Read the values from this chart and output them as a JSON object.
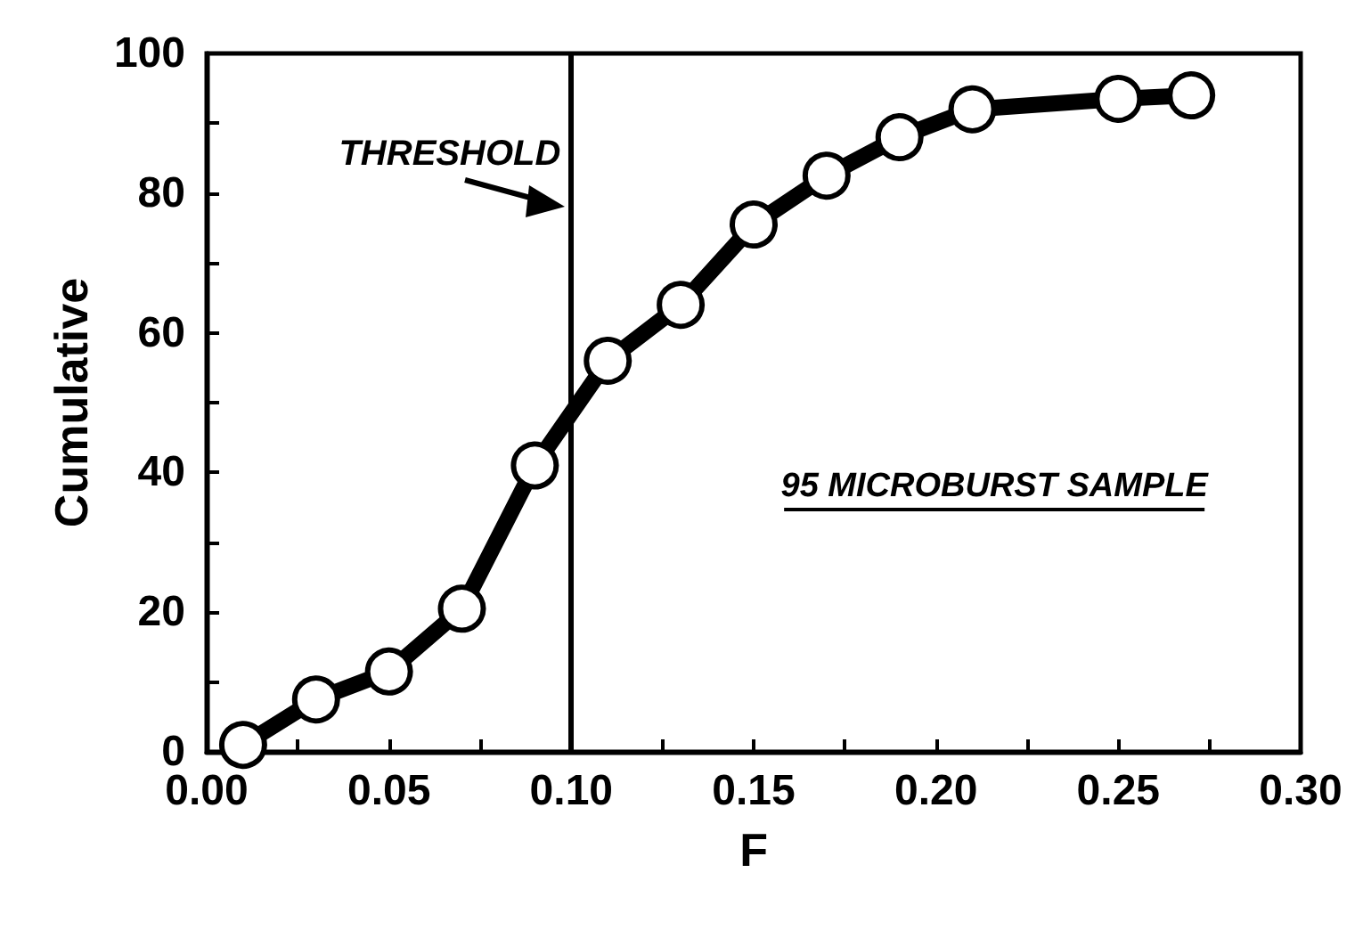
{
  "chart_data": {
    "type": "line",
    "xlabel": "F",
    "ylabel": "Cumulative",
    "x": [
      0.01,
      0.03,
      0.05,
      0.07,
      0.09,
      0.11,
      0.13,
      0.15,
      0.17,
      0.19,
      0.21,
      0.25,
      0.27
    ],
    "series": [
      {
        "color": "#000000",
        "values": [
          1,
          7.5,
          11.5,
          20.5,
          41,
          56,
          64,
          75.5,
          82.5,
          88,
          92,
          93.5,
          94
        ]
      }
    ],
    "xlim": [
      0,
      0.3
    ],
    "xticks": [
      {
        "value": 0,
        "label": "0.00"
      },
      {
        "value": 0.025,
        "label": null
      },
      {
        "value": 0.05,
        "label": "0.05"
      },
      {
        "value": 0.075,
        "label": null
      },
      {
        "value": 0.1,
        "label": "0.10"
      },
      {
        "value": 0.125,
        "label": null
      },
      {
        "value": 0.15,
        "label": "0.15"
      },
      {
        "value": 0.175,
        "label": null
      },
      {
        "value": 0.2,
        "label": "0.20"
      },
      {
        "value": 0.225,
        "label": null
      },
      {
        "value": 0.25,
        "label": "0.25"
      },
      {
        "value": 0.275,
        "label": null
      },
      {
        "value": 0.3,
        "label": "0.30"
      }
    ],
    "ylim": [
      0,
      100
    ],
    "yticks": [
      0,
      {
        "value": 10,
        "label": null
      },
      20,
      {
        "value": 30,
        "label": null
      },
      40,
      {
        "value": 50,
        "label": null
      },
      60,
      {
        "value": 70,
        "label": null
      },
      80,
      {
        "value": 90,
        "label": null
      },
      100
    ],
    "ref_lines": [
      {
        "axis": "x",
        "value": 0.1,
        "label": "THRESHOLD",
        "color": "#000000"
      }
    ],
    "annotations": [
      "95 MICROBURST SAMPLE"
    ],
    "marker": "circle",
    "line_style": "solid",
    "grid": false
  }
}
